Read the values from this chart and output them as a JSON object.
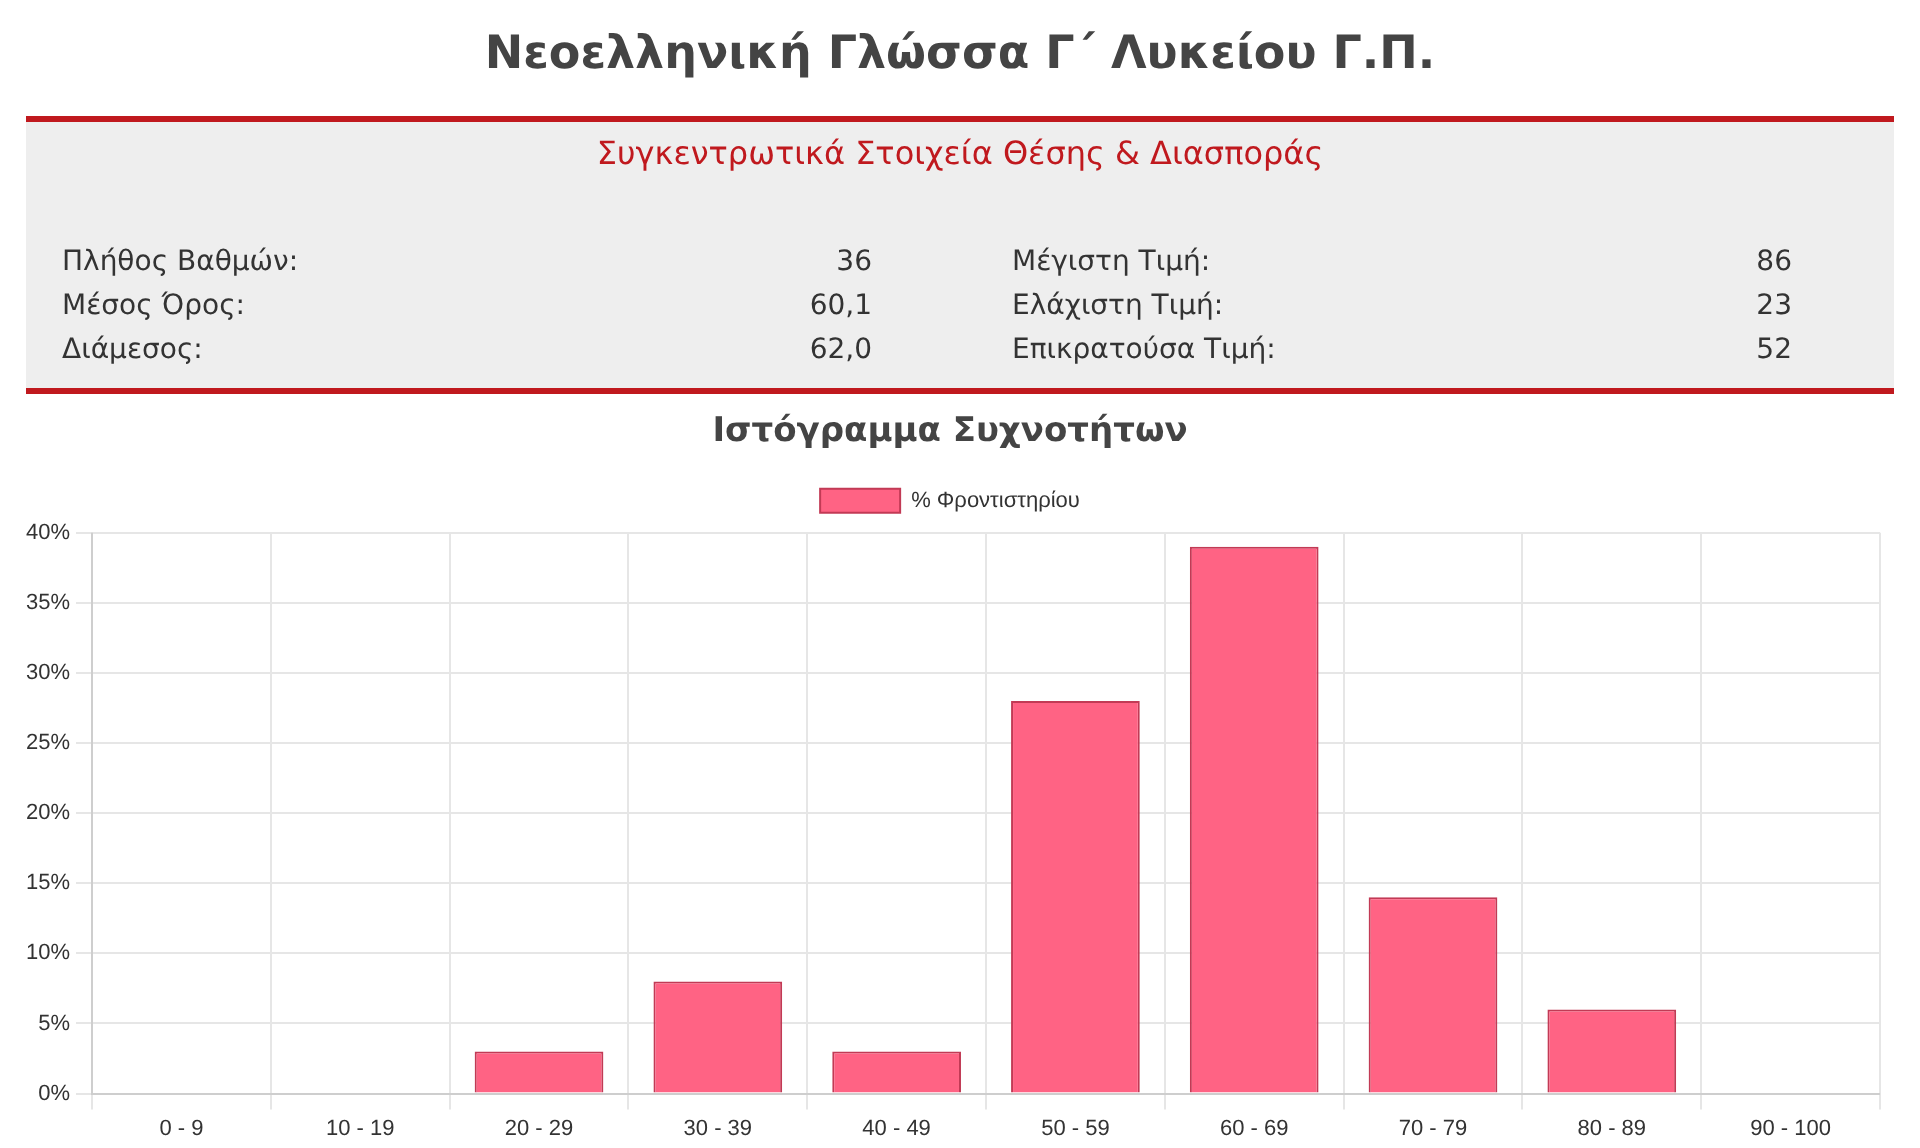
{
  "chart_data": [
    {
      "type": "other",
      "title": "Νεοελληνική Γλώσσα Γ΄ Λυκείου Γ.Π.",
      "subtitle": "Συγκεντρωτικά Στοιχεία Θέσης & Διασποράς",
      "annotations": [
        "Πλήθος Βαθμών:",
        "36",
        "Μέσος Όρος:",
        "60,1",
        "Διάμεσος:",
        "62,0",
        "Μέγιστη Τιμή:",
        "86",
        "Ελάχιστη Τιμή:",
        "23",
        "Επικρατούσα Τιμή:",
        "52"
      ]
    },
    {
      "type": "bar",
      "title": "Ιστόγραμμα Συχνοτήτων",
      "categories": [
        "0 - 9",
        "10 - 19",
        "20 - 29",
        "30 - 39",
        "40 - 49",
        "50 - 59",
        "60 - 69",
        "70 - 79",
        "80 - 89",
        "90 - 100"
      ],
      "series": [
        {
          "name": "% Φροντιστηρίου",
          "color": "#ff6384",
          "values": [
            0,
            0,
            3,
            8,
            3,
            28,
            39,
            14,
            6,
            0
          ]
        }
      ],
      "ylim": [
        0,
        40
      ],
      "yticks": [
        {
          "value": 0,
          "label": "0%"
        },
        {
          "value": 5,
          "label": "5%"
        },
        {
          "value": 10,
          "label": "10%"
        },
        {
          "value": 15,
          "label": "15%"
        },
        {
          "value": 20,
          "label": "20%"
        },
        {
          "value": 25,
          "label": "25%"
        },
        {
          "value": 30,
          "label": "30%"
        },
        {
          "value": 35,
          "label": "35%"
        },
        {
          "value": 40,
          "label": "40%"
        }
      ],
      "grid": true,
      "legend": "top"
    }
  ]
}
